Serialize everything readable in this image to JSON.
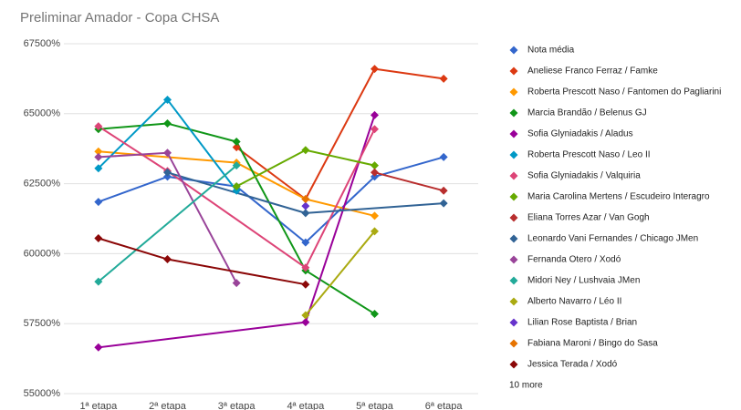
{
  "chart_data": {
    "type": "line",
    "title": "Preliminar Amador - Copa CHSA",
    "categories": [
      "1ª etapa",
      "2ª etapa",
      "3ª etapa",
      "4ª etapa",
      "5ª etapa",
      "6ª etapa"
    ],
    "ylim": [
      55000,
      67500
    ],
    "yticks": [
      {
        "value": 55000,
        "label": "55000%"
      },
      {
        "value": 57500,
        "label": "57500%"
      },
      {
        "value": 60000,
        "label": "60000%"
      },
      {
        "value": 62500,
        "label": "62500%"
      },
      {
        "value": 65000,
        "label": "65000%"
      },
      {
        "value": 67500,
        "label": "67500%"
      }
    ],
    "grid": true,
    "legend": "right",
    "legend_more": "10 more",
    "series": [
      {
        "name": "Nota média",
        "color": "#3366cc",
        "values": [
          61850,
          62750,
          62400,
          60400,
          62750,
          63450
        ]
      },
      {
        "name": "Aneliese Franco Ferraz / Famke",
        "color": "#dc3912",
        "values": [
          null,
          null,
          63800,
          61950,
          66600,
          66250
        ]
      },
      {
        "name": "Roberta Prescott Naso / Fantomen do Pagliarini",
        "color": "#ff9900",
        "values": [
          63650,
          null,
          63250,
          61950,
          61350,
          null
        ]
      },
      {
        "name": "Marcia Brandão / Belenus GJ",
        "color": "#109618",
        "values": [
          64450,
          64650,
          64000,
          59400,
          57850,
          null
        ]
      },
      {
        "name": "Sofia Glyniadakis / Aladus",
        "color": "#990099",
        "values": [
          56650,
          null,
          null,
          57550,
          64950,
          null
        ]
      },
      {
        "name": "Roberta Prescott Naso / Leo II",
        "color": "#0099c6",
        "values": [
          63050,
          65500,
          62250,
          null,
          null,
          null
        ]
      },
      {
        "name": "Sofia Glyniadakis / Valquiria",
        "color": "#dd4477",
        "values": [
          64550,
          62950,
          null,
          59500,
          64450,
          null
        ]
      },
      {
        "name": "Maria Carolina Mertens / Escudeiro Interagro",
        "color": "#66aa00",
        "values": [
          null,
          null,
          62400,
          63700,
          63150,
          null
        ]
      },
      {
        "name": "Eliana Torres Azar / Van Gogh",
        "color": "#b82e2e",
        "values": [
          null,
          null,
          null,
          null,
          62900,
          62250
        ]
      },
      {
        "name": "Leonardo Vani Fernandes / Chicago JMen",
        "color": "#316395",
        "values": [
          null,
          62900,
          null,
          61450,
          null,
          61800
        ]
      },
      {
        "name": "Fernanda Otero / Xodó",
        "color": "#994499",
        "values": [
          63450,
          63600,
          58950,
          null,
          null,
          null
        ]
      },
      {
        "name": " Midori Ney / Lushvaia JMen",
        "color": "#22aa99",
        "values": [
          59000,
          null,
          63150,
          null,
          null,
          null
        ]
      },
      {
        "name": "Alberto Navarro / Léo II",
        "color": "#aaaa11",
        "values": [
          null,
          null,
          null,
          57800,
          60800,
          null
        ]
      },
      {
        "name": "Lilian Rose Baptista / Brian",
        "color": "#6633cc",
        "values": [
          null,
          null,
          null,
          61700,
          null,
          null
        ]
      },
      {
        "name": "Fabiana Maroni / Bingo do Sasa",
        "color": "#e67300",
        "values": [
          null,
          null,
          null,
          61950,
          null,
          null
        ]
      },
      {
        "name": "Jessica Terada / Xodó",
        "color": "#8b0707",
        "values": [
          60550,
          59800,
          null,
          58900,
          null,
          null
        ]
      }
    ]
  }
}
